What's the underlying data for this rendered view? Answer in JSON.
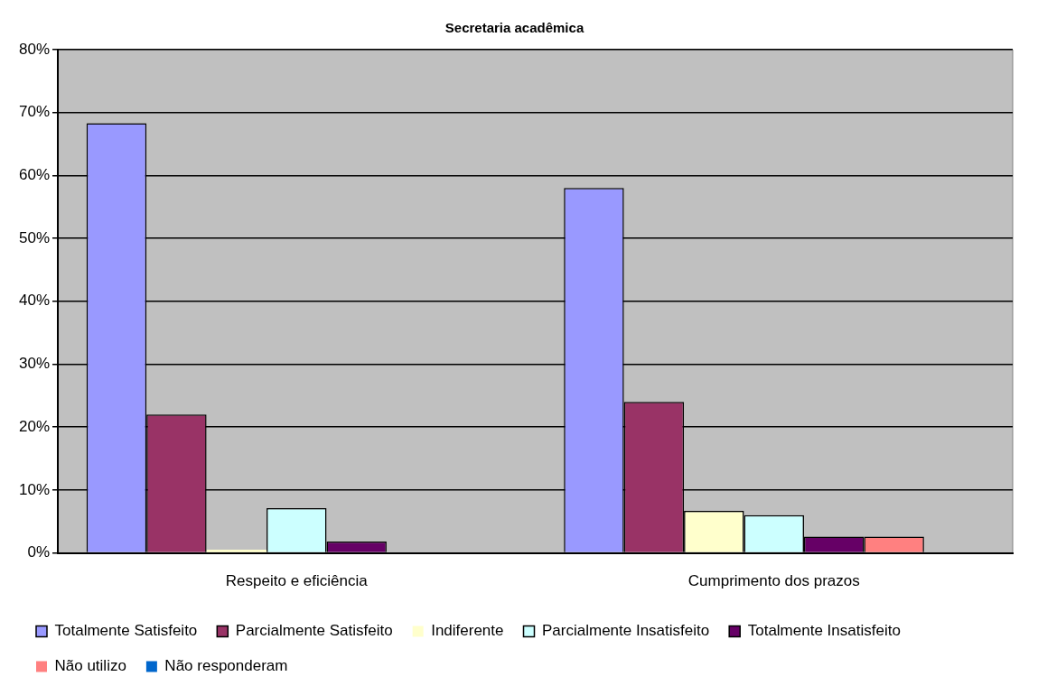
{
  "chart_data": {
    "type": "bar",
    "title": "Secretaria acadêmica",
    "categories": [
      "Respeito e eficiência",
      "Cumprimento dos prazos"
    ],
    "series": [
      {
        "name": "Totalmente Satisfeito",
        "color": "#9999ff",
        "values": [
          68.3,
          58
        ]
      },
      {
        "name": "Parcialmente Satisfeito",
        "color": "#993366",
        "values": [
          22,
          24
        ]
      },
      {
        "name": "Indiferente",
        "color": "#ffffcc",
        "values": [
          0.5,
          6.7
        ]
      },
      {
        "name": "Parcialmente Insatisfeito",
        "color": "#ccffff",
        "values": [
          7.1,
          6
        ]
      },
      {
        "name": "Totalmente Insatisfeito",
        "color": "#660066",
        "values": [
          1.8,
          2.6
        ]
      },
      {
        "name": "Não utilizo",
        "color": "#ff8080",
        "values": [
          0,
          2.6
        ]
      },
      {
        "name": "Não responderam",
        "color": "#0066cc",
        "values": [
          0,
          0
        ]
      }
    ],
    "ylim": [
      0,
      80
    ],
    "yticks": [
      {
        "value": 0,
        "label": "0%"
      },
      {
        "value": 10,
        "label": "10%"
      },
      {
        "value": 20,
        "label": "20%"
      },
      {
        "value": 30,
        "label": "30%"
      },
      {
        "value": 40,
        "label": "40%"
      },
      {
        "value": 50,
        "label": "50%"
      },
      {
        "value": 60,
        "label": "60%"
      },
      {
        "value": 70,
        "label": "70%"
      },
      {
        "value": 80,
        "label": "80%"
      }
    ],
    "grid": "y",
    "legend": "bottom"
  }
}
